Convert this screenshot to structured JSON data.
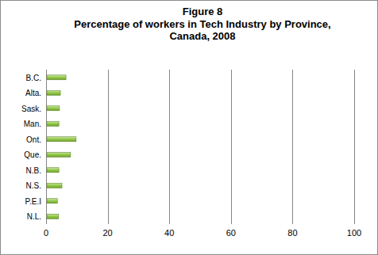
{
  "chart_data": {
    "type": "bar",
    "orientation": "horizontal",
    "title": "Figure 8",
    "subtitle": "Percentage of workers in Tech Industry by Province, Canada, 2008",
    "categories": [
      "B.C.",
      "Alta.",
      "Sask.",
      "Man.",
      "Ont.",
      "Que.",
      "N.B.",
      "N.S.",
      "P.E.I",
      "N.L."
    ],
    "values": [
      6.2,
      4.4,
      4.1,
      3.9,
      9.5,
      7.7,
      3.9,
      4.9,
      3.4,
      3.8
    ],
    "color": "#8dc63f",
    "xlim": [
      0,
      100
    ],
    "xticks": [
      0,
      20,
      40,
      60,
      80,
      100
    ],
    "grid": true
  }
}
